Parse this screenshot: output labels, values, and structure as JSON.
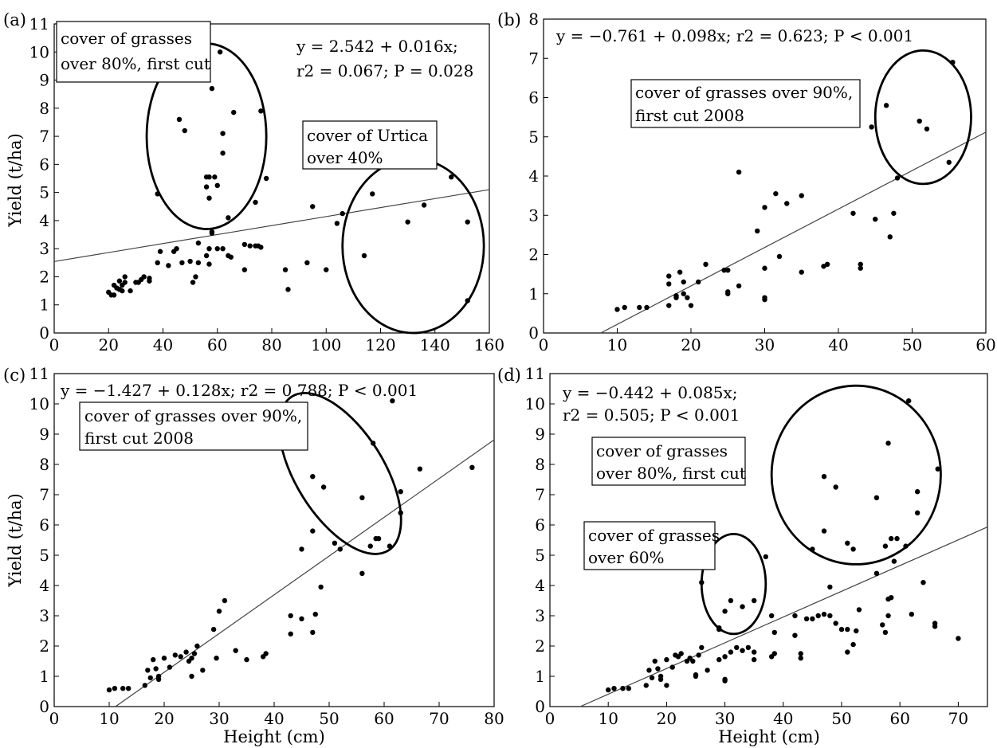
{
  "chart_data": [
    {
      "panel": "(a)",
      "type": "scatter",
      "xlim": [
        0,
        160
      ],
      "ylim": [
        0,
        11
      ],
      "xticks": [
        0,
        20,
        40,
        60,
        80,
        100,
        120,
        140,
        160
      ],
      "yticks": [
        0,
        1,
        2,
        3,
        4,
        5,
        6,
        7,
        8,
        9,
        10,
        11
      ],
      "xlabel": "",
      "ylabel": "Yield (t/ha)",
      "equation_lines": [
        "y = 2.542 + 0.016x;",
        "r2 = 0.067; P = 0.028"
      ],
      "regression": {
        "intercept": 2.542,
        "slope": 0.016
      },
      "annotations": [
        {
          "lines": [
            "cover of grasses",
            "over 80%, first cut"
          ]
        },
        {
          "lines": [
            "cover of Urtica",
            "over 40%"
          ]
        }
      ],
      "ellipses": [
        {
          "cx": 56,
          "cy": 7.0,
          "rx": 22,
          "ry": 3.3
        },
        {
          "cx": 132,
          "cy": 3.1,
          "rx": 26,
          "ry": 3.1
        }
      ],
      "points": [
        [
          20,
          1.45
        ],
        [
          21,
          1.35
        ],
        [
          22,
          1.7
        ],
        [
          22,
          1.35
        ],
        [
          23,
          1.6
        ],
        [
          24,
          1.55
        ],
        [
          24,
          1.85
        ],
        [
          25,
          1.5
        ],
        [
          25,
          1.7
        ],
        [
          26,
          1.8
        ],
        [
          26,
          2.0
        ],
        [
          28,
          1.5
        ],
        [
          30,
          1.8
        ],
        [
          31,
          1.8
        ],
        [
          32,
          1.9
        ],
        [
          33,
          2.0
        ],
        [
          35,
          1.85
        ],
        [
          35,
          1.95
        ],
        [
          38,
          2.5
        ],
        [
          39,
          2.9
        ],
        [
          42,
          2.4
        ],
        [
          44,
          2.9
        ],
        [
          45,
          3.0
        ],
        [
          47,
          2.5
        ],
        [
          50,
          2.55
        ],
        [
          51,
          1.8
        ],
        [
          52,
          2.0
        ],
        [
          53,
          2.5
        ],
        [
          53,
          3.2
        ],
        [
          56,
          2.75
        ],
        [
          57,
          2.45
        ],
        [
          57,
          3.0
        ],
        [
          58,
          3.55
        ],
        [
          58,
          3.6
        ],
        [
          60,
          3.0
        ],
        [
          62,
          3.0
        ],
        [
          64,
          2.75
        ],
        [
          65,
          2.7
        ],
        [
          70,
          2.25
        ],
        [
          70,
          3.15
        ],
        [
          72,
          3.1
        ],
        [
          74,
          3.1
        ],
        [
          75,
          3.1
        ],
        [
          76,
          3.05
        ],
        [
          85,
          2.25
        ],
        [
          86,
          1.55
        ],
        [
          93,
          2.5
        ],
        [
          100,
          2.25
        ],
        [
          106,
          4.25
        ],
        [
          38,
          4.95
        ],
        [
          46,
          7.6
        ],
        [
          48,
          7.2
        ],
        [
          56,
          5.2
        ],
        [
          56,
          5.55
        ],
        [
          57,
          4.8
        ],
        [
          57,
          5.55
        ],
        [
          58,
          8.7
        ],
        [
          59,
          5.55
        ],
        [
          60,
          5.25
        ],
        [
          61,
          10.0
        ],
        [
          62,
          7.1
        ],
        [
          62,
          6.4
        ],
        [
          64,
          4.1
        ],
        [
          66,
          7.85
        ],
        [
          74,
          4.65
        ],
        [
          76,
          7.9
        ],
        [
          78,
          5.5
        ],
        [
          95,
          4.5
        ],
        [
          104,
          3.9
        ],
        [
          114,
          2.75
        ],
        [
          117,
          4.95
        ],
        [
          130,
          3.95
        ],
        [
          136,
          4.55
        ],
        [
          146,
          5.55
        ],
        [
          152,
          3.95
        ],
        [
          152,
          1.15
        ]
      ]
    },
    {
      "panel": "(b)",
      "type": "scatter",
      "xlim": [
        0,
        60
      ],
      "ylim": [
        0,
        8
      ],
      "xticks": [
        0,
        10,
        20,
        30,
        40,
        50,
        60
      ],
      "yticks": [
        0,
        1,
        2,
        3,
        4,
        5,
        6,
        7,
        8
      ],
      "xlabel": "",
      "ylabel": "",
      "equation_lines": [
        "y = −0.761 + 0.098x; r2 = 0.623; P < 0.001"
      ],
      "regression": {
        "intercept": -0.761,
        "slope": 0.098
      },
      "annotations": [
        {
          "lines": [
            "cover of grasses over 90%,",
            "first cut 2008"
          ]
        }
      ],
      "ellipses": [
        {
          "cx": 51.5,
          "cy": 5.5,
          "rx": 6.5,
          "ry": 1.7
        }
      ],
      "points": [
        [
          10,
          0.6
        ],
        [
          11,
          0.65
        ],
        [
          13,
          0.65
        ],
        [
          14,
          0.65
        ],
        [
          17,
          0.7
        ],
        [
          17,
          1.25
        ],
        [
          17,
          1.45
        ],
        [
          18,
          0.95
        ],
        [
          18,
          0.9
        ],
        [
          18.5,
          1.55
        ],
        [
          19,
          1.3
        ],
        [
          19,
          1.0
        ],
        [
          19.5,
          0.9
        ],
        [
          20,
          0.7
        ],
        [
          21,
          1.3
        ],
        [
          22,
          1.75
        ],
        [
          24.5,
          1.6
        ],
        [
          25,
          1.0
        ],
        [
          25,
          1.05
        ],
        [
          25,
          1.6
        ],
        [
          26.5,
          1.2
        ],
        [
          26.5,
          4.1
        ],
        [
          29,
          2.6
        ],
        [
          30,
          0.9
        ],
        [
          30,
          0.85
        ],
        [
          30,
          3.2
        ],
        [
          30,
          1.65
        ],
        [
          31.5,
          3.55
        ],
        [
          32,
          1.95
        ],
        [
          33,
          3.3
        ],
        [
          35,
          3.5
        ],
        [
          35,
          1.55
        ],
        [
          38,
          1.7
        ],
        [
          38.5,
          1.75
        ],
        [
          42,
          3.05
        ],
        [
          43,
          1.65
        ],
        [
          43,
          1.75
        ],
        [
          45,
          2.9
        ],
        [
          47,
          2.45
        ],
        [
          47.5,
          3.05
        ],
        [
          48,
          3.95
        ],
        [
          44.5,
          5.25
        ],
        [
          46.5,
          5.8
        ],
        [
          51,
          5.4
        ],
        [
          52,
          5.2
        ],
        [
          55,
          4.35
        ],
        [
          55.5,
          6.9
        ]
      ]
    },
    {
      "panel": "(c)",
      "type": "scatter",
      "xlim": [
        0,
        80
      ],
      "ylim": [
        0,
        11
      ],
      "xticks": [
        0,
        10,
        20,
        30,
        40,
        50,
        60,
        70,
        80
      ],
      "yticks": [
        0,
        1,
        2,
        3,
        4,
        5,
        6,
        7,
        8,
        9,
        10,
        11
      ],
      "xlabel": "Height (cm)",
      "ylabel": "Yield (t/ha)",
      "equation_lines": [
        "y = −1.427 + 0.128x; r2 = 0.788; P < 0.001"
      ],
      "regression": {
        "intercept": -1.427,
        "slope": 0.128
      },
      "annotations": [
        {
          "lines": [
            "cover of grasses over 90%,",
            "first cut 2008"
          ]
        }
      ],
      "ellipses": [
        {
          "cx": 52,
          "cy": 7.7,
          "rx": 8,
          "ry": 3.0,
          "rotate": -32
        }
      ],
      "points": [
        [
          10,
          0.55
        ],
        [
          11,
          0.6
        ],
        [
          12.5,
          0.6
        ],
        [
          13.5,
          0.6
        ],
        [
          16.5,
          0.7
        ],
        [
          17,
          1.2
        ],
        [
          17.5,
          0.95
        ],
        [
          18,
          1.55
        ],
        [
          18.5,
          1.25
        ],
        [
          19,
          1.0
        ],
        [
          19,
          0.9
        ],
        [
          20,
          1.6
        ],
        [
          21,
          1.3
        ],
        [
          22,
          1.7
        ],
        [
          23,
          1.65
        ],
        [
          24,
          1.8
        ],
        [
          24.5,
          1.5
        ],
        [
          25,
          1.6
        ],
        [
          25,
          1.0
        ],
        [
          25.5,
          1.75
        ],
        [
          26,
          2.0
        ],
        [
          27,
          1.2
        ],
        [
          29,
          2.55
        ],
        [
          29.5,
          1.6
        ],
        [
          30,
          3.15
        ],
        [
          31,
          3.5
        ],
        [
          33,
          1.85
        ],
        [
          35,
          1.55
        ],
        [
          38,
          1.65
        ],
        [
          38.5,
          1.75
        ],
        [
          43,
          2.4
        ],
        [
          43,
          3.0
        ],
        [
          45,
          2.9
        ],
        [
          47,
          2.45
        ],
        [
          47.5,
          3.05
        ],
        [
          48.5,
          3.95
        ],
        [
          51,
          5.4
        ],
        [
          52,
          5.2
        ],
        [
          56,
          4.4
        ],
        [
          57.5,
          5.3
        ],
        [
          58.5,
          5.55
        ],
        [
          59,
          5.55
        ],
        [
          61,
          5.3
        ],
        [
          63,
          6.4
        ],
        [
          63,
          7.1
        ],
        [
          66.5,
          7.85
        ],
        [
          76,
          7.9
        ],
        [
          45,
          5.2
        ],
        [
          47,
          5.8
        ],
        [
          47,
          7.6
        ],
        [
          49,
          7.25
        ],
        [
          56,
          6.9
        ],
        [
          58,
          8.7
        ],
        [
          61.5,
          10.1
        ]
      ]
    },
    {
      "panel": "(d)",
      "type": "scatter",
      "xlim": [
        0,
        75
      ],
      "ylim": [
        0,
        11
      ],
      "xticks": [
        0,
        10,
        20,
        30,
        40,
        50,
        60,
        70
      ],
      "yticks": [
        0,
        1,
        2,
        3,
        4,
        5,
        6,
        7,
        8,
        9,
        10,
        11
      ],
      "xlabel": "Height (cm)",
      "ylabel": "",
      "equation_lines": [
        "y = −0.442 + 0.085x;",
        "r2 = 0.505; P < 0.001"
      ],
      "regression": {
        "intercept": -0.442,
        "slope": 0.085
      },
      "annotations": [
        {
          "lines": [
            "cover of grasses",
            "over 80%, first cut"
          ]
        },
        {
          "lines": [
            "cover of grasses",
            "over 60%"
          ]
        }
      ],
      "ellipses": [
        {
          "cx": 52.5,
          "cy": 7.65,
          "rx": 14.5,
          "ry": 2.95
        },
        {
          "cx": 31.5,
          "cy": 4.05,
          "rx": 5.5,
          "ry": 1.65
        }
      ],
      "points": [
        [
          10,
          0.55
        ],
        [
          11,
          0.6
        ],
        [
          12.5,
          0.6
        ],
        [
          13.5,
          0.6
        ],
        [
          16.5,
          0.7
        ],
        [
          17,
          1.2
        ],
        [
          17.5,
          0.95
        ],
        [
          18,
          1.5
        ],
        [
          18.5,
          1.25
        ],
        [
          19,
          1.0
        ],
        [
          19,
          0.9
        ],
        [
          20,
          1.55
        ],
        [
          20,
          0.7
        ],
        [
          21,
          1.3
        ],
        [
          21.5,
          1.7
        ],
        [
          22,
          1.65
        ],
        [
          22.5,
          1.75
        ],
        [
          23.5,
          1.5
        ],
        [
          24,
          1.6
        ],
        [
          24.5,
          1.5
        ],
        [
          25,
          1.0
        ],
        [
          25,
          1.05
        ],
        [
          25.5,
          1.7
        ],
        [
          26,
          1.95
        ],
        [
          27,
          1.2
        ],
        [
          29,
          2.6
        ],
        [
          29,
          1.55
        ],
        [
          30,
          0.9
        ],
        [
          30,
          0.85
        ],
        [
          30,
          1.65
        ],
        [
          31,
          1.8
        ],
        [
          32,
          1.95
        ],
        [
          33,
          1.85
        ],
        [
          34,
          1.95
        ],
        [
          35,
          1.55
        ],
        [
          35,
          1.8
        ],
        [
          38,
          3.0
        ],
        [
          38,
          1.65
        ],
        [
          38.5,
          1.75
        ],
        [
          38.5,
          2.45
        ],
        [
          42,
          2.35
        ],
        [
          42,
          3.0
        ],
        [
          43,
          1.6
        ],
        [
          43,
          1.75
        ],
        [
          44,
          2.9
        ],
        [
          45,
          2.9
        ],
        [
          46,
          3.0
        ],
        [
          47,
          3.05
        ],
        [
          48,
          3.0
        ],
        [
          49,
          2.75
        ],
        [
          50,
          2.55
        ],
        [
          51,
          1.8
        ],
        [
          51,
          2.55
        ],
        [
          52,
          2.05
        ],
        [
          52.5,
          2.5
        ],
        [
          53,
          3.2
        ],
        [
          57,
          2.7
        ],
        [
          57.5,
          2.45
        ],
        [
          58,
          3.0
        ],
        [
          58,
          3.55
        ],
        [
          58.5,
          3.6
        ],
        [
          62,
          3.05
        ],
        [
          66,
          2.75
        ],
        [
          66,
          2.65
        ],
        [
          70,
          2.25
        ],
        [
          56,
          4.4
        ],
        [
          59,
          4.8
        ],
        [
          64,
          4.1
        ],
        [
          48,
          3.95
        ],
        [
          26,
          4.1
        ],
        [
          29,
          2.55
        ],
        [
          30,
          3.15
        ],
        [
          31,
          3.5
        ],
        [
          33,
          3.3
        ],
        [
          35,
          3.5
        ],
        [
          37,
          4.95
        ],
        [
          45,
          5.2
        ],
        [
          47,
          5.8
        ],
        [
          47,
          7.6
        ],
        [
          49,
          7.25
        ],
        [
          51,
          5.4
        ],
        [
          52,
          5.2
        ],
        [
          56,
          6.9
        ],
        [
          57.5,
          5.3
        ],
        [
          58,
          8.7
        ],
        [
          58.5,
          5.55
        ],
        [
          59.5,
          5.55
        ],
        [
          61,
          5.3
        ],
        [
          61.5,
          10.1
        ],
        [
          63,
          7.1
        ],
        [
          63,
          6.4
        ],
        [
          66.5,
          7.85
        ]
      ]
    }
  ],
  "labels": {
    "a": {
      "panel": "(a)",
      "eq1": "y = 2.542 + 0.016x;",
      "eq2": "r2 = 0.067; P = 0.028",
      "ann1a": "cover of grasses",
      "ann1b": "over 80%, first cut",
      "ann2a": "cover of Urtica",
      "ann2b": "over 40%",
      "ylabel": "Yield (t/ha)"
    },
    "b": {
      "panel": "(b)",
      "eq1": "y = −0.761 + 0.098x; r2 = 0.623; P < 0.001",
      "ann1a": "cover of grasses over 90%,",
      "ann1b": "first cut 2008"
    },
    "c": {
      "panel": "(c)",
      "eq1": "y = −1.427 + 0.128x; r2 = 0.788; P < 0.001",
      "ann1a": "cover of grasses over 90%,",
      "ann1b": "first cut 2008",
      "ylabel": "Yield (t/ha)",
      "xlabel": "Height (cm)"
    },
    "d": {
      "panel": "(d)",
      "eq1": "y = −0.442 + 0.085x;",
      "eq2": "r2 = 0.505; P < 0.001",
      "ann1a": "cover of grasses",
      "ann1b": "over 80%, first cut",
      "ann2a": "cover of grasses",
      "ann2b": "over 60%",
      "xlabel": "Height (cm)"
    }
  }
}
